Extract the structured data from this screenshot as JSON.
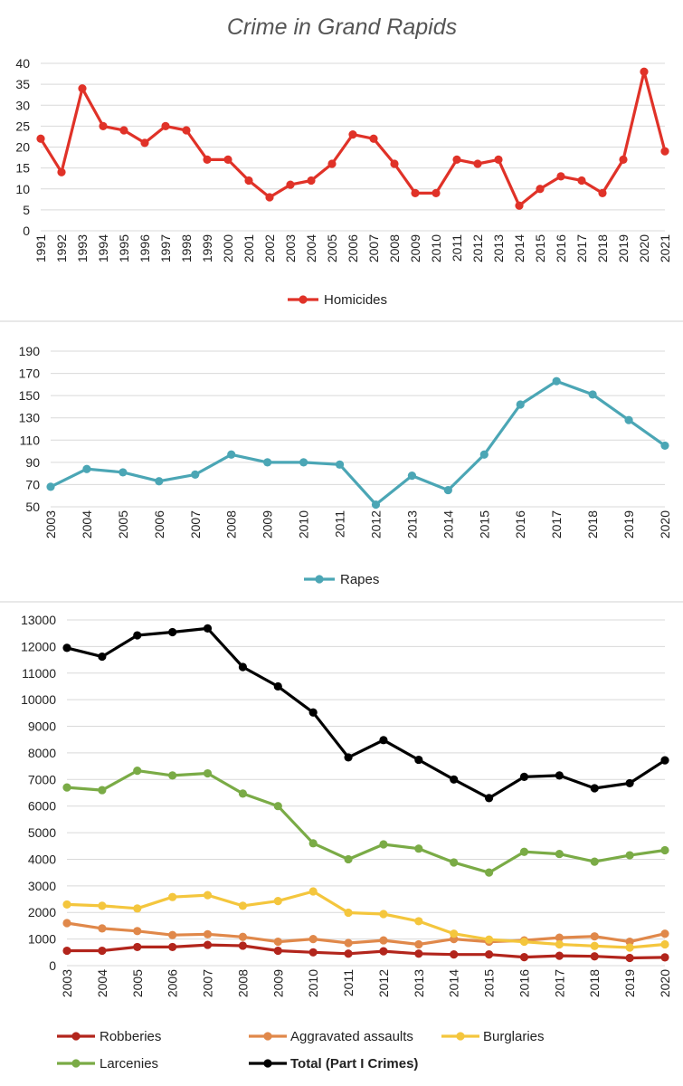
{
  "title": "Crime in Grand Rapids",
  "chart_data": [
    {
      "type": "line",
      "x": [
        "1991",
        "1992",
        "1993",
        "1994",
        "1995",
        "1996",
        "1997",
        "1998",
        "1999",
        "2000",
        "2001",
        "2002",
        "2003",
        "2004",
        "2005",
        "2006",
        "2007",
        "2008",
        "2009",
        "2010",
        "2011",
        "2012",
        "2013",
        "2014",
        "2015",
        "2016",
        "2017",
        "2018",
        "2019",
        "2020",
        "2021"
      ],
      "series": [
        {
          "name": "Homicides",
          "color": "#e03228",
          "values": [
            22,
            14,
            34,
            25,
            24,
            21,
            25,
            24,
            17,
            17,
            12,
            8,
            11,
            12,
            16,
            23,
            22,
            16,
            9,
            9,
            17,
            16,
            17,
            6,
            10,
            13,
            12,
            9,
            17,
            38,
            19
          ]
        }
      ],
      "ylim": [
        0,
        40
      ],
      "yticks": [
        0,
        5,
        10,
        15,
        20,
        25,
        30,
        35,
        40
      ],
      "grid": true,
      "legend": "bottom"
    },
    {
      "type": "line",
      "x": [
        "2003",
        "2004",
        "2005",
        "2006",
        "2007",
        "2008",
        "2009",
        "2010",
        "2011",
        "2012",
        "2013",
        "2014",
        "2015",
        "2016",
        "2017",
        "2018",
        "2019",
        "2020"
      ],
      "series": [
        {
          "name": "Rapes",
          "color": "#4ba6b5",
          "values": [
            68,
            84,
            81,
            73,
            79,
            97,
            90,
            90,
            88,
            52,
            78,
            65,
            97,
            142,
            163,
            151,
            128,
            105
          ]
        }
      ],
      "ylim": [
        50,
        190
      ],
      "yticks": [
        50,
        70,
        90,
        110,
        130,
        150,
        170,
        190
      ],
      "grid": true,
      "legend": "bottom"
    },
    {
      "type": "line",
      "x": [
        "2003",
        "2004",
        "2005",
        "2006",
        "2007",
        "2008",
        "2009",
        "2010",
        "2011",
        "2012",
        "2013",
        "2014",
        "2015",
        "2016",
        "2017",
        "2018",
        "2019",
        "2020"
      ],
      "series": [
        {
          "name": "Robberies",
          "color": "#b2251c",
          "values": [
            560,
            560,
            700,
            700,
            780,
            750,
            560,
            500,
            450,
            540,
            450,
            420,
            420,
            320,
            370,
            350,
            290,
            310
          ]
        },
        {
          "name": "Aggravated assaults",
          "color": "#e0884a",
          "values": [
            1600,
            1400,
            1300,
            1150,
            1180,
            1080,
            900,
            1000,
            850,
            950,
            800,
            1000,
            900,
            950,
            1050,
            1100,
            900,
            1200
          ]
        },
        {
          "name": "Burglaries",
          "color": "#f4c63d",
          "values": [
            2300,
            2250,
            2150,
            2580,
            2650,
            2250,
            2430,
            2790,
            1990,
            1940,
            1670,
            1200,
            980,
            900,
            800,
            740,
            680,
            800
          ]
        },
        {
          "name": "Larcenies",
          "color": "#7aab46",
          "values": [
            6700,
            6600,
            7330,
            7150,
            7230,
            6470,
            6000,
            4600,
            4000,
            4560,
            4400,
            3880,
            3500,
            4280,
            4200,
            3910,
            4150,
            4340
          ]
        },
        {
          "name": "Total (Part I Crimes)",
          "color": "#000000",
          "bold": true,
          "values": [
            11950,
            11620,
            12420,
            12540,
            12680,
            11230,
            10500,
            9520,
            7830,
            8480,
            7740,
            7000,
            6300,
            7100,
            7150,
            6670,
            6860,
            7720
          ]
        }
      ],
      "ylim": [
        0,
        13000
      ],
      "yticks": [
        0,
        1000,
        2000,
        3000,
        4000,
        5000,
        6000,
        7000,
        8000,
        9000,
        10000,
        11000,
        12000,
        13000
      ],
      "grid": true,
      "legend": "bottom"
    }
  ]
}
